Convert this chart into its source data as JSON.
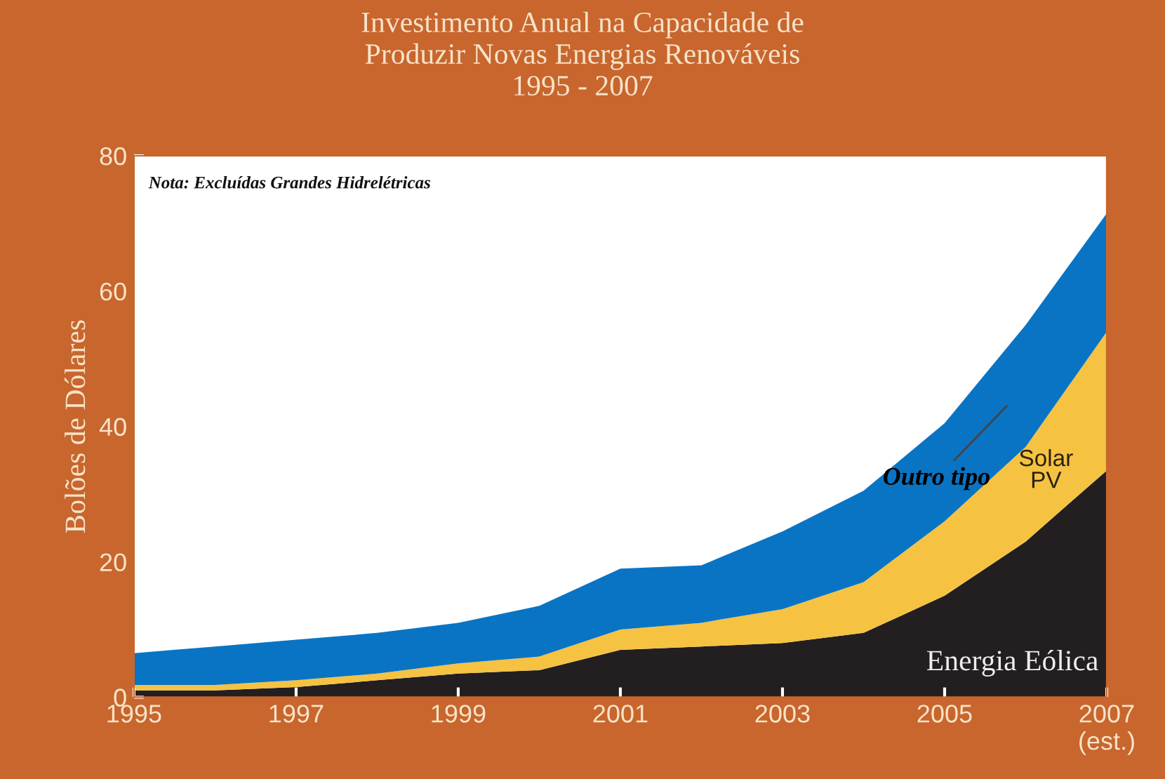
{
  "chart_data": {
    "type": "area",
    "stacked": true,
    "title": "Investimento Anual na Capacidade de\nProduzir Novas Energias Renováveis\n1995 - 2007",
    "ylabel": "Bolões de Dólares",
    "x": [
      1995,
      1996,
      1997,
      1998,
      1999,
      2000,
      2001,
      2002,
      2003,
      2004,
      2005,
      2006,
      2007
    ],
    "series": [
      {
        "name": "Energia Eólica",
        "color": "#231f20",
        "values": [
          1,
          1,
          1.5,
          2.5,
          3.5,
          4,
          7,
          7.5,
          8,
          9.5,
          15,
          23,
          33.5
        ]
      },
      {
        "name": "Solar\nPV",
        "color": "#f5c242",
        "values": [
          0.8,
          0.8,
          1,
          1,
          1.5,
          2,
          3,
          3.5,
          5,
          7.5,
          11,
          14,
          20.5
        ]
      },
      {
        "name": "Outro tipo",
        "color": "#0a74c4",
        "values": [
          4.7,
          5.7,
          6,
          6,
          6,
          7.5,
          9,
          8.5,
          11.5,
          13.5,
          14.5,
          18,
          17.5
        ]
      }
    ],
    "xlim": [
      1995,
      2007
    ],
    "ylim": [
      0,
      80
    ],
    "xticks": [
      1995,
      1997,
      1999,
      2001,
      2003,
      2005,
      {
        "value": 2007,
        "label": "2007\n(est.)"
      }
    ],
    "yticks": [
      0,
      20,
      40,
      60,
      80
    ],
    "grid": false,
    "legend": false,
    "annotations": [
      "Nota: Excluídas Grandes Hidrelétricas"
    ]
  }
}
